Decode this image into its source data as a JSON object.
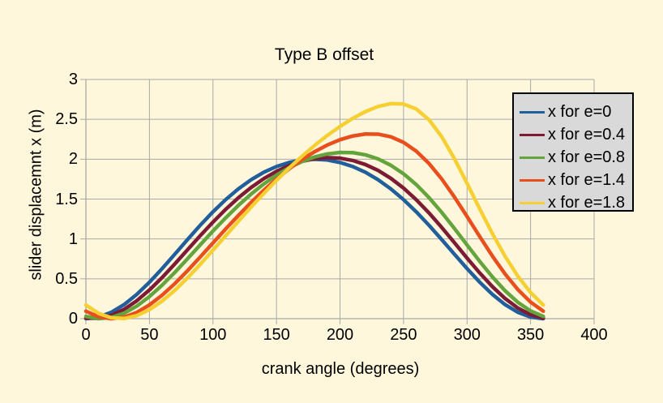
{
  "chart": {
    "background_color": "#FEF7DC",
    "grid_color": "#A8A8A8",
    "axis_color": "#A8A8A8",
    "legend_bg_color": "#D9D9D9",
    "legend_border_color": "#000000",
    "text_color": "#000000"
  },
  "chart_data": {
    "type": "line",
    "title": "Type B offset",
    "xlabel": "crank angle (degrees)",
    "ylabel": "slider displacemnt x (m)",
    "xlim": [
      0,
      400
    ],
    "ylim": [
      0,
      3
    ],
    "x_ticks": [
      0,
      50,
      100,
      150,
      200,
      250,
      300,
      350,
      400
    ],
    "y_ticks": [
      0,
      0.5,
      1,
      1.5,
      2,
      2.5,
      3
    ],
    "grid": true,
    "legend_position": "upper-right",
    "x": [
      0,
      10,
      20,
      30,
      40,
      50,
      60,
      70,
      80,
      90,
      100,
      110,
      120,
      130,
      140,
      150,
      160,
      170,
      180,
      190,
      200,
      210,
      220,
      230,
      240,
      250,
      260,
      270,
      280,
      290,
      300,
      310,
      320,
      330,
      340,
      350,
      360
    ],
    "series": [
      {
        "name": "x for e=0",
        "color": "#205E9C",
        "values": [
          0,
          0.02,
          0.08,
          0.176,
          0.304,
          0.457,
          0.628,
          0.809,
          0.993,
          1.172,
          1.34,
          1.493,
          1.628,
          1.742,
          1.836,
          1.908,
          1.959,
          1.99,
          2.0,
          1.99,
          1.959,
          1.908,
          1.836,
          1.742,
          1.628,
          1.493,
          1.34,
          1.172,
          0.993,
          0.809,
          0.628,
          0.457,
          0.304,
          0.176,
          0.08,
          0.02,
          0
        ]
      },
      {
        "name": "x for e=0.4",
        "color": "#7C1B33",
        "values": [
          0.007,
          0.004,
          0.041,
          0.116,
          0.224,
          0.36,
          0.516,
          0.687,
          0.864,
          1.041,
          1.211,
          1.371,
          1.516,
          1.645,
          1.756,
          1.848,
          1.92,
          1.973,
          2.007,
          2.02,
          2.013,
          1.984,
          1.933,
          1.859,
          1.76,
          1.638,
          1.492,
          1.327,
          1.145,
          0.954,
          0.76,
          0.573,
          0.401,
          0.252,
          0.133,
          0.05,
          0.007
        ]
      },
      {
        "name": "x for e=0.8",
        "color": "#64A43C",
        "values": [
          0.028,
          0.0,
          0.015,
          0.068,
          0.157,
          0.277,
          0.42,
          0.58,
          0.751,
          0.926,
          1.099,
          1.264,
          1.42,
          1.562,
          1.689,
          1.8,
          1.894,
          1.97,
          2.028,
          2.066,
          2.085,
          2.082,
          2.055,
          2.003,
          1.924,
          1.817,
          1.682,
          1.519,
          1.334,
          1.133,
          0.924,
          0.718,
          0.523,
          0.349,
          0.205,
          0.097,
          0.028
        ]
      },
      {
        "name": "x for e=1.4",
        "color": "#E94F1C",
        "values": [
          0.094,
          0.024,
          0.0,
          0.019,
          0.078,
          0.172,
          0.295,
          0.44,
          0.602,
          0.774,
          0.95,
          1.125,
          1.295,
          1.458,
          1.61,
          1.751,
          1.879,
          1.994,
          2.094,
          2.178,
          2.244,
          2.291,
          2.316,
          2.314,
          2.281,
          2.211,
          2.101,
          1.947,
          1.753,
          1.527,
          1.281,
          1.029,
          0.784,
          0.559,
          0.365,
          0.208,
          0.094
        ]
      },
      {
        "name": "x for e=1.8",
        "color": "#F6D032",
        "values": [
          0.172,
          0.066,
          0.011,
          0.002,
          0.038,
          0.113,
          0.221,
          0.356,
          0.511,
          0.681,
          0.859,
          1.04,
          1.221,
          1.399,
          1.57,
          1.734,
          1.89,
          2.036,
          2.172,
          2.298,
          2.411,
          2.512,
          2.597,
          2.661,
          2.697,
          2.692,
          2.63,
          2.495,
          2.283,
          2.008,
          1.697,
          1.375,
          1.065,
          0.78,
          0.532,
          0.328,
          0.172
        ]
      }
    ]
  }
}
